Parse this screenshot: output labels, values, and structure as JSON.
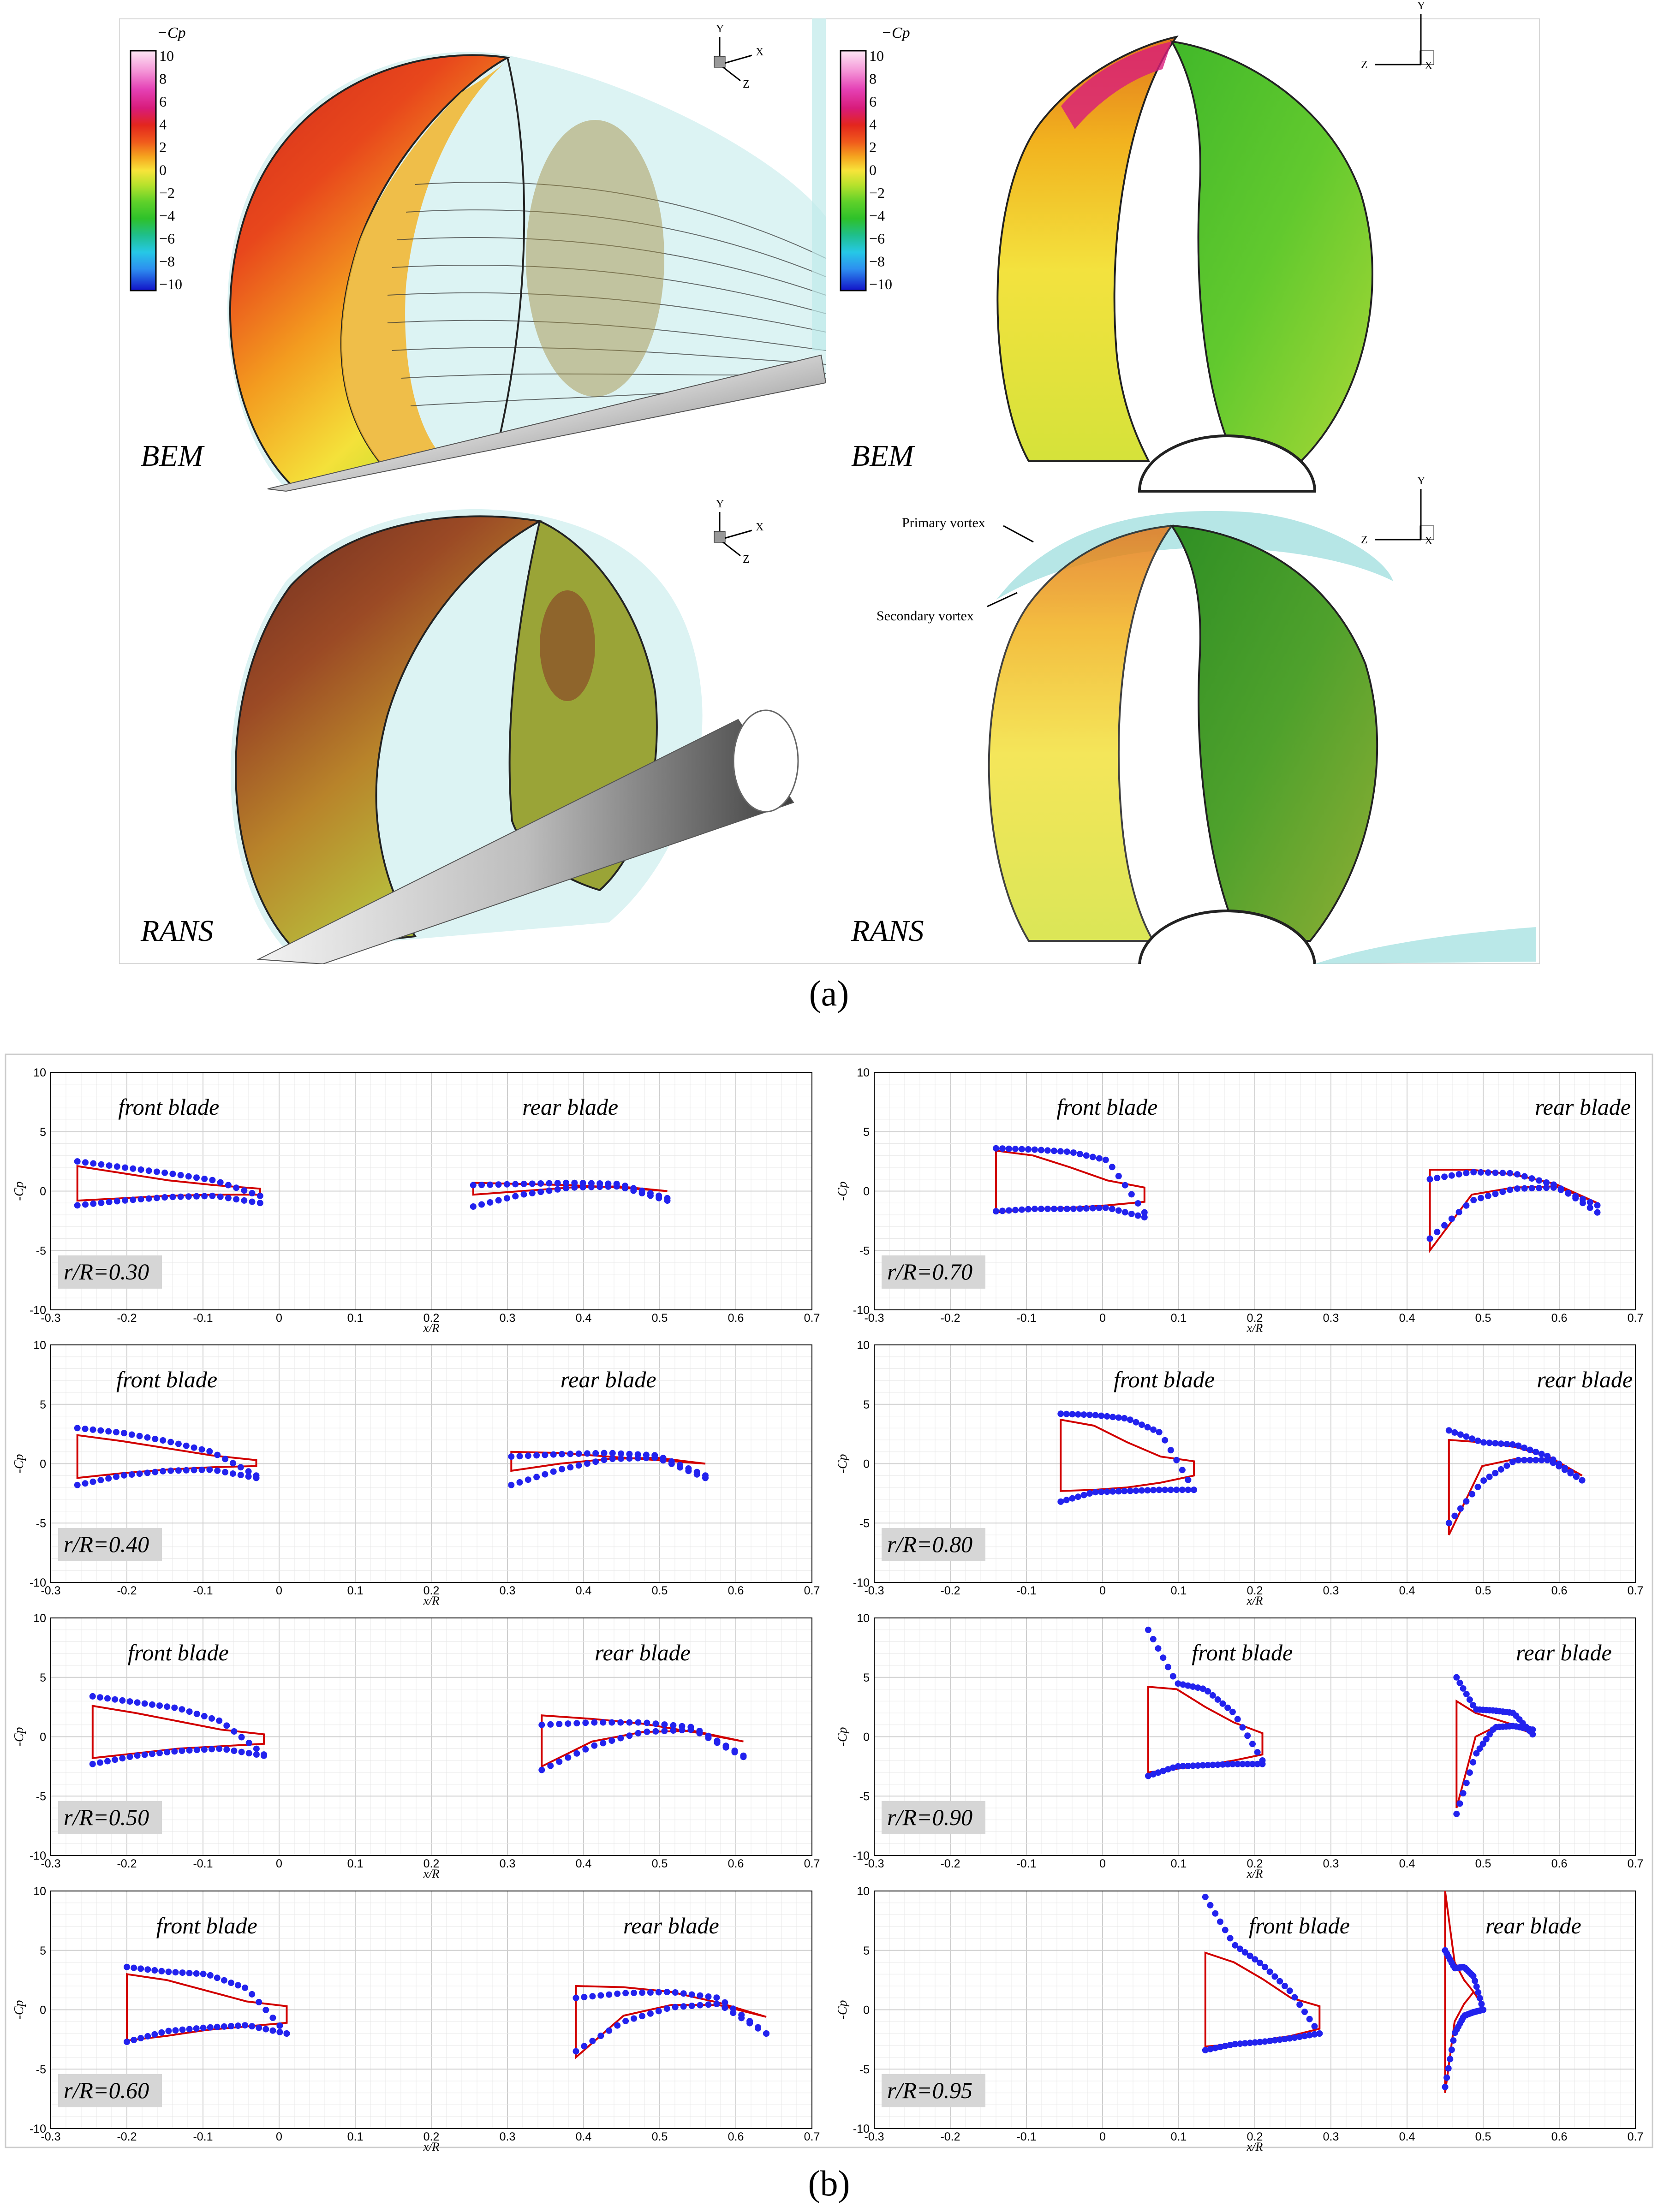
{
  "panel_a": {
    "caption": "(a)",
    "legend_title": "−Cp",
    "legend_ticks": [
      "10",
      "8",
      "6",
      "4",
      "2",
      "0",
      "−2",
      "−4",
      "−6",
      "−8",
      "−10"
    ],
    "legend_colors": [
      "#fde7f5",
      "#f59ad9",
      "#e542b6",
      "#d81b7a",
      "#e3261d",
      "#f05a1c",
      "#f5a21e",
      "#f7e43a",
      "#b7e22c",
      "#5fd12a",
      "#2ec12a",
      "#1fbf8d",
      "#26c8e6",
      "#2d8ff0",
      "#1f3ff0",
      "#1212c8"
    ],
    "views": [
      {
        "label": "BEM",
        "axes": [
          "Y",
          "X",
          "Z"
        ]
      },
      {
        "label": "BEM",
        "axes": [
          "Y",
          "Z",
          "X"
        ]
      },
      {
        "label": "RANS",
        "axes": [
          "Y",
          "X",
          "Z"
        ]
      },
      {
        "label": "RANS",
        "axes": [
          "Y",
          "Z",
          "X"
        ]
      }
    ],
    "annotations": {
      "primary": "Primary vortex",
      "secondary": "Secondary vortex"
    }
  },
  "panel_b": {
    "caption": "(b)",
    "ylabel": "-Cp",
    "xlabel": "x/R",
    "front_label": "front blade",
    "rear_label": "rear blade",
    "x_ticks": [
      "-0.3",
      "-0.2",
      "-0.1",
      "0",
      "0.1",
      "0.2",
      "0.3",
      "0.4",
      "0.5",
      "0.6",
      "0.7"
    ],
    "y_ticks": [
      "10",
      "5",
      "0",
      "-5",
      "-10"
    ],
    "series_colors": {
      "rans": "#d10000",
      "bem": "#2222ee"
    }
  },
  "chart_data": {
    "type": "line",
    "title": "",
    "xlabel": "x/R",
    "ylabel": "-Cp",
    "xlim": [
      -0.3,
      0.7
    ],
    "ylim": [
      -10,
      10
    ],
    "grid": true,
    "series_names": [
      "RANS (red line)",
      "BEM (blue dots)"
    ],
    "sections": [
      {
        "r": "r/R=0.30",
        "front": [
          -0.265,
          -0.025
        ],
        "rear": [
          0.255,
          0.51
        ],
        "fr_top": [
          2.1,
          1.5,
          0.9,
          0.5,
          0.2
        ],
        "fr_bot": [
          -0.8,
          -0.6,
          -0.4,
          -0.3,
          -0.3
        ],
        "fb_top": [
          2.5,
          2.0,
          1.5,
          0.9,
          -0.4
        ],
        "fb_bot": [
          -1.2,
          -0.8,
          -0.5,
          -0.4,
          -1.0
        ],
        "rr_top": [
          0.7,
          0.6,
          0.5,
          0.3,
          0.0
        ],
        "rr_bot": [
          -0.3,
          0.0,
          0.3,
          0.4,
          0.0
        ],
        "rb_top": [
          0.5,
          0.6,
          0.7,
          0.6,
          -0.6
        ],
        "rb_bot": [
          -1.3,
          -0.3,
          0.3,
          0.4,
          -0.8
        ]
      },
      {
        "r": "r/R=0.70",
        "front": [
          -0.14,
          0.055
        ],
        "rear": [
          0.43,
          0.65
        ],
        "fr_top": [
          3.4,
          3.0,
          2.0,
          0.9,
          0.3
        ],
        "fr_bot": [
          -1.8,
          -1.5,
          -1.4,
          -1.2,
          -0.9
        ],
        "fb_top": [
          3.6,
          3.5,
          3.3,
          2.6,
          -1.8
        ],
        "fb_bot": [
          -1.7,
          -1.5,
          -1.5,
          -1.4,
          -2.2
        ],
        "rr_top": [
          1.8,
          1.8,
          1.4,
          0.6,
          -1.0
        ],
        "rr_bot": [
          -5.0,
          -0.3,
          0.3,
          0.4,
          -1.0
        ],
        "rb_top": [
          1.0,
          1.6,
          1.5,
          0.5,
          -1.8
        ],
        "rb_bot": [
          -4.0,
          -0.8,
          0.2,
          0.3,
          -1.2
        ]
      },
      {
        "r": "r/R=0.40",
        "front": [
          -0.265,
          -0.03
        ],
        "rear": [
          0.305,
          0.56
        ],
        "fr_top": [
          2.4,
          1.9,
          1.3,
          0.7,
          0.3
        ],
        "fr_bot": [
          -1.2,
          -0.8,
          -0.5,
          -0.3,
          -0.2
        ],
        "fb_top": [
          3.0,
          2.6,
          1.9,
          1.0,
          -1.0
        ],
        "fb_bot": [
          -1.8,
          -1.0,
          -0.6,
          -0.5,
          -1.2
        ],
        "rr_top": [
          1.0,
          0.9,
          0.6,
          0.3,
          0.0
        ],
        "rr_bot": [
          -0.6,
          0.0,
          0.4,
          0.5,
          0.0
        ],
        "rb_top": [
          0.6,
          0.8,
          0.9,
          0.7,
          -1.0
        ],
        "rb_bot": [
          -1.8,
          -0.5,
          0.4,
          0.5,
          -1.2
        ]
      },
      {
        "r": "r/R=0.80",
        "front": [
          -0.055,
          0.12
        ],
        "rear": [
          0.455,
          0.63
        ],
        "fr_top": [
          3.7,
          3.2,
          1.8,
          0.6,
          0.2
        ],
        "fr_bot": [
          -2.3,
          -2.2,
          -2.0,
          -1.6,
          -1.0
        ],
        "fb_top": [
          4.2,
          4.1,
          3.8,
          2.6,
          -2.2
        ],
        "fb_bot": [
          -3.2,
          -2.4,
          -2.3,
          -2.2,
          -2.2
        ],
        "rr_top": [
          2.0,
          1.8,
          1.4,
          0.6,
          -1.0
        ],
        "rr_bot": [
          -6.0,
          -0.2,
          0.4,
          0.4,
          -1.0
        ],
        "rb_top": [
          2.8,
          1.8,
          1.6,
          0.6,
          -1.4
        ],
        "rb_bot": [
          -5.0,
          -1.5,
          0.3,
          0.3,
          -1.4
        ]
      },
      {
        "r": "r/R=0.50",
        "front": [
          -0.245,
          -0.02
        ],
        "rear": [
          0.345,
          0.61
        ],
        "fr_top": [
          2.6,
          2.0,
          1.3,
          0.6,
          0.2
        ],
        "fr_bot": [
          -1.8,
          -1.4,
          -1.0,
          -0.8,
          -0.6
        ],
        "fb_top": [
          3.4,
          2.9,
          2.4,
          1.3,
          -1.5
        ],
        "fb_bot": [
          -2.3,
          -1.6,
          -1.2,
          -1.0,
          -1.6
        ],
        "rr_top": [
          1.8,
          1.5,
          1.1,
          0.4,
          -0.4
        ],
        "rr_bot": [
          -2.5,
          -0.4,
          0.4,
          0.5,
          -0.4
        ],
        "rb_top": [
          1.0,
          1.2,
          1.2,
          0.8,
          -1.6
        ],
        "rb_bot": [
          -2.8,
          -0.8,
          0.4,
          0.6,
          -1.7
        ]
      },
      {
        "r": "r/R=0.90",
        "front": [
          0.06,
          0.21
        ],
        "rear": [
          0.465,
          0.565
        ],
        "fr_top": [
          4.2,
          4.0,
          2.5,
          1.2,
          0.3
        ],
        "fr_bot": [
          -3.0,
          -2.7,
          -2.4,
          -2.0,
          -1.5
        ],
        "fb_top": [
          9.0,
          4.5,
          4.0,
          2.0,
          -2.0
        ],
        "fb_bot": [
          -3.3,
          -2.5,
          -2.4,
          -2.3,
          -2.3
        ],
        "rr_top": [
          3.0,
          2.0,
          1.5,
          1.0,
          0.3
        ],
        "rr_bot": [
          -6.0,
          0.0,
          0.8,
          0.8,
          0.3
        ],
        "rb_top": [
          5.0,
          2.3,
          2.2,
          2.0,
          0.2
        ],
        "rb_bot": [
          -6.5,
          -1.5,
          0.8,
          0.9,
          0.6
        ]
      },
      {
        "r": "r/R=0.60",
        "front": [
          -0.2,
          0.01
        ],
        "rear": [
          0.39,
          0.64
        ],
        "fr_top": [
          3.0,
          2.5,
          1.6,
          0.7,
          0.3
        ],
        "fr_bot": [
          -2.6,
          -2.2,
          -1.7,
          -1.4,
          -1.1
        ],
        "fb_top": [
          3.6,
          3.2,
          3.0,
          1.8,
          -2.0
        ],
        "fb_bot": [
          -2.7,
          -1.8,
          -1.5,
          -1.3,
          -2.0
        ],
        "rr_top": [
          2.0,
          1.9,
          1.5,
          0.6,
          -0.6
        ],
        "rr_bot": [
          -4.0,
          -0.5,
          0.4,
          0.4,
          -0.6
        ],
        "rb_top": [
          1.0,
          1.4,
          1.5,
          1.0,
          -2.0
        ],
        "rb_bot": [
          -3.5,
          -1.0,
          0.2,
          0.5,
          -2.0
        ]
      },
      {
        "r": "r/R=0.95",
        "front": [
          0.135,
          0.285
        ],
        "rear": [
          0.45,
          0.5
        ],
        "fr_top": [
          4.8,
          4.0,
          2.6,
          1.0,
          0.3
        ],
        "fr_bot": [
          -3.1,
          -2.9,
          -2.6,
          -2.2,
          -1.6
        ],
        "fb_top": [
          9.5,
          5.5,
          3.8,
          1.5,
          -2.0
        ],
        "fb_bot": [
          -3.4,
          -2.9,
          -2.7,
          -2.4,
          -2.0
        ],
        "rr_top": [
          10.0,
          4.0,
          2.5,
          1.5,
          0.3
        ],
        "rr_bot": [
          -7.0,
          -1.0,
          0.5,
          1.5,
          0.3
        ],
        "rb_top": [
          5.0,
          3.5,
          3.6,
          2.8,
          0.0
        ],
        "rb_bot": [
          -6.5,
          -2.0,
          -0.5,
          -0.2,
          0.0
        ]
      }
    ]
  }
}
